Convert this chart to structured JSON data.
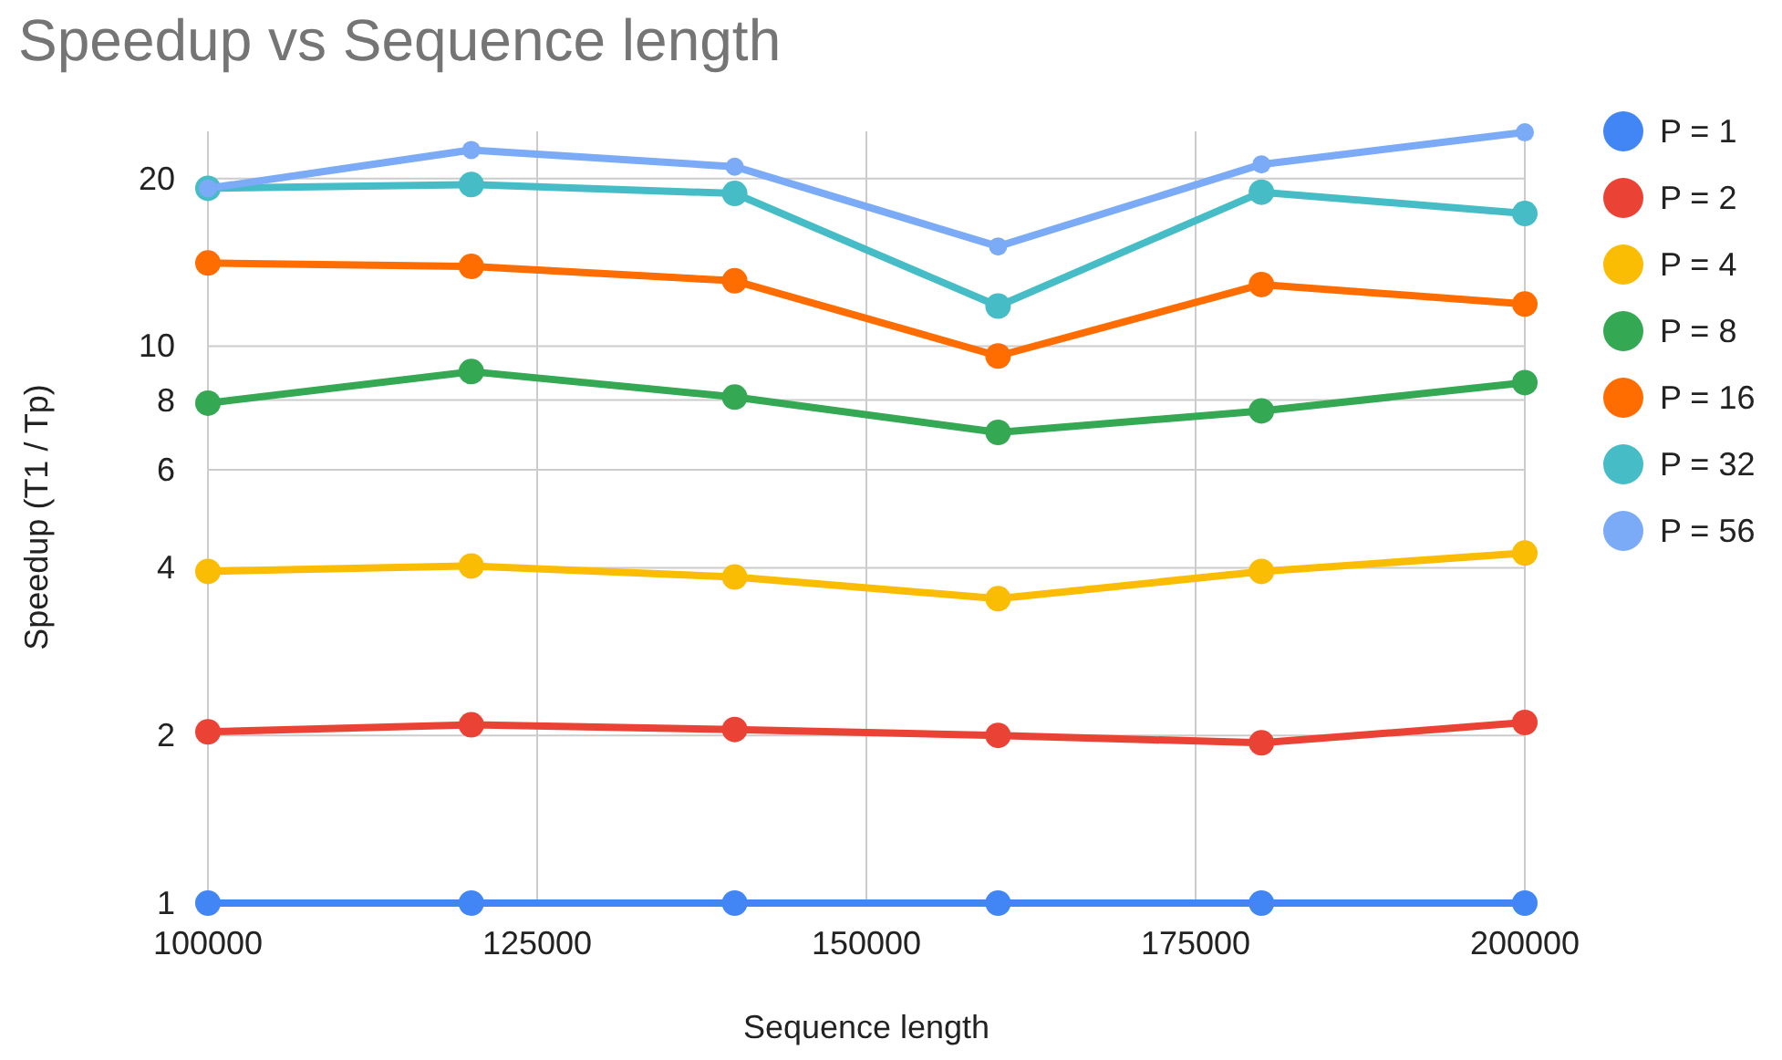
{
  "chart_data": {
    "type": "line",
    "title": "Speedup vs Sequence length",
    "xlabel": "Sequence length",
    "ylabel": "Speedup (T1 / Tp)",
    "x": [
      100000,
      120000,
      140000,
      160000,
      180000,
      200000
    ],
    "series": [
      {
        "name": "P = 1",
        "color": "#4285f4",
        "values": [
          1,
          1,
          1,
          1,
          1,
          1
        ]
      },
      {
        "name": "P = 2",
        "color": "#ea4335",
        "values": [
          2.03,
          2.09,
          2.05,
          2.0,
          1.94,
          2.11
        ]
      },
      {
        "name": "P = 4",
        "color": "#fbbc04",
        "values": [
          3.94,
          4.03,
          3.85,
          3.52,
          3.94,
          4.25
        ]
      },
      {
        "name": "P = 8",
        "color": "#34a853",
        "values": [
          7.9,
          9.0,
          8.1,
          7.0,
          7.65,
          8.6
        ]
      },
      {
        "name": "P = 16",
        "color": "#ff6d01",
        "values": [
          14.1,
          13.9,
          13.1,
          9.6,
          12.9,
          11.9
        ]
      },
      {
        "name": "P = 32",
        "color": "#46bdc6",
        "values": [
          19.2,
          19.5,
          18.8,
          11.8,
          18.9,
          17.3
        ]
      },
      {
        "name": "P = 56",
        "color": "#7baaf7",
        "values": [
          19.2,
          22.5,
          21.0,
          15.1,
          21.2,
          24.2
        ]
      }
    ],
    "xlim": [
      100000,
      200000
    ],
    "xticks": [
      100000,
      125000,
      150000,
      175000,
      200000
    ],
    "ylim": [
      1,
      24.3
    ],
    "yticks": [
      1,
      2,
      4,
      6,
      8,
      10,
      20
    ],
    "log": true,
    "grid": true,
    "legend": "right",
    "marker": "circle",
    "line_style": "solid"
  }
}
